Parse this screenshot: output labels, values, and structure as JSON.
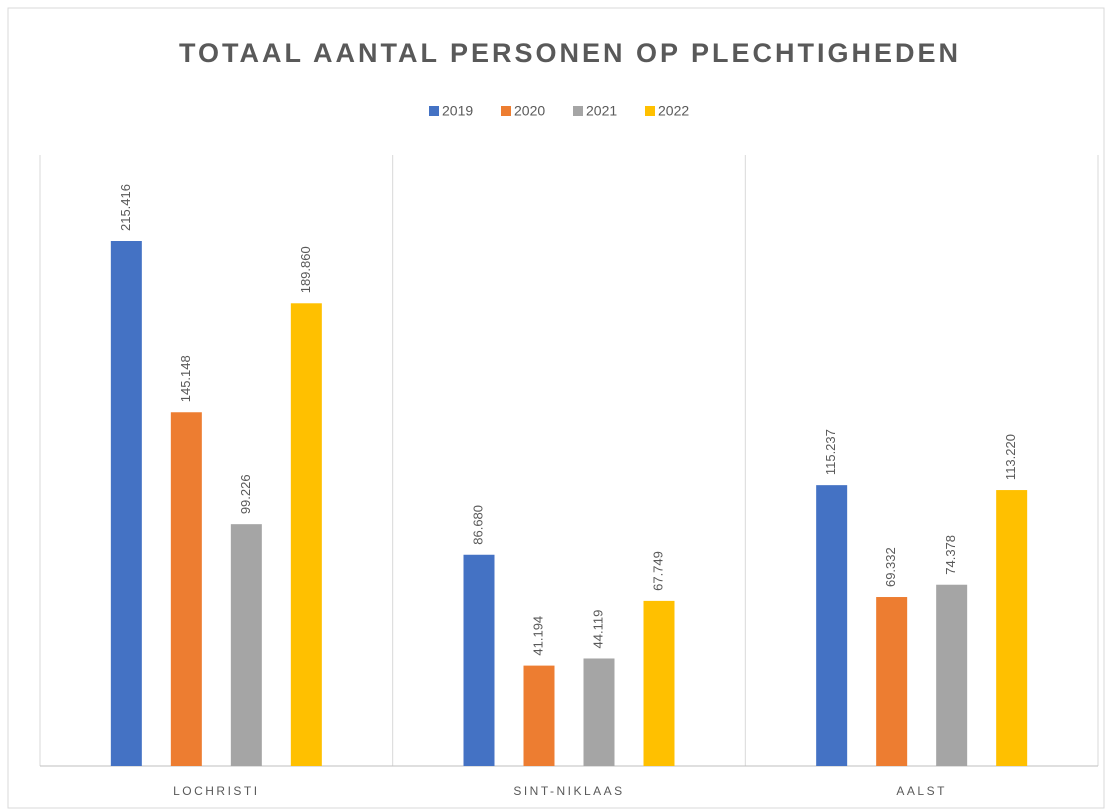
{
  "chart_data": {
    "type": "bar",
    "title": "TOTAAL AANTAL PERSONEN OP PLECHTIGHEDEN",
    "categories": [
      "LOCHRISTI",
      "SINT-NIKLAAS",
      "AALST"
    ],
    "series": [
      {
        "name": "2019",
        "color": "#4472c4",
        "values": [
          215416,
          86680,
          115237
        ],
        "value_labels": [
          "215.416",
          "86.680",
          "115.237"
        ]
      },
      {
        "name": "2020",
        "color": "#ed7d31",
        "values": [
          145148,
          41194,
          69332
        ],
        "value_labels": [
          "145.148",
          "41.194",
          "69.332"
        ]
      },
      {
        "name": "2021",
        "color": "#a5a5a5",
        "values": [
          99226,
          44119,
          74378
        ],
        "value_labels": [
          "99.226",
          "44.119",
          "74.378"
        ]
      },
      {
        "name": "2022",
        "color": "#ffc000",
        "values": [
          189860,
          67749,
          113220
        ],
        "value_labels": [
          "189.860",
          "67.749",
          "113.220"
        ]
      }
    ],
    "legend": "top"
  }
}
